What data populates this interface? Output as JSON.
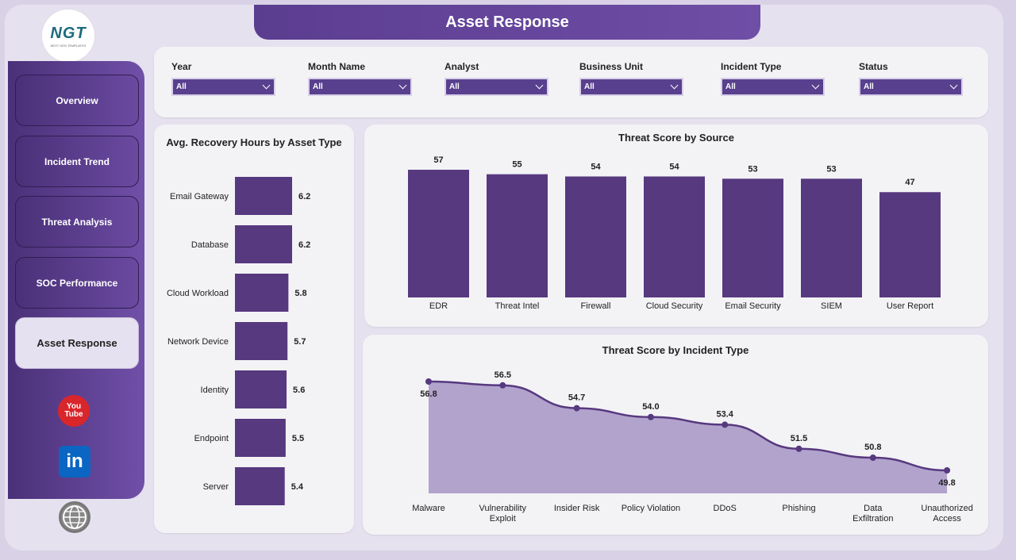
{
  "header": {
    "title": "Asset Response"
  },
  "logo": {
    "text": "NGT",
    "subtext": "NEXT GEN TEMPLATES"
  },
  "nav": {
    "items": [
      {
        "label": "Overview"
      },
      {
        "label": "Incident Trend"
      },
      {
        "label": "Threat Analysis"
      },
      {
        "label": "SOC Performance"
      },
      {
        "label": "Asset Response"
      }
    ],
    "active": "Asset Response"
  },
  "social": {
    "youtube_line1": "You",
    "youtube_line2": "Tube",
    "linkedin": "in",
    "icons": [
      "youtube-icon",
      "linkedin-icon",
      "globe-icon"
    ]
  },
  "filters": [
    {
      "label": "Year",
      "value": "All"
    },
    {
      "label": "Month Name",
      "value": "All"
    },
    {
      "label": "Analyst",
      "value": "All"
    },
    {
      "label": "Business Unit",
      "value": "All"
    },
    {
      "label": "Incident Type",
      "value": "All"
    },
    {
      "label": "Status",
      "value": "All"
    }
  ],
  "colors": {
    "accent": "#58408e",
    "bar": "#57397f",
    "area": "#b2a3cd",
    "line": "#57397f"
  },
  "chart_data": [
    {
      "type": "bar",
      "orientation": "horizontal",
      "title": "Avg. Recovery Hours by Asset Type",
      "categories": [
        "Email Gateway",
        "Database",
        "Cloud Workload",
        "Network Device",
        "Identity",
        "Endpoint",
        "Server"
      ],
      "values": [
        6.2,
        6.2,
        5.8,
        5.7,
        5.6,
        5.5,
        5.4
      ]
    },
    {
      "type": "bar",
      "title": "Threat Score by Source",
      "categories": [
        "EDR",
        "Threat Intel",
        "Firewall",
        "Cloud Security",
        "Email Security",
        "SIEM",
        "User Report"
      ],
      "values": [
        57,
        55,
        54,
        54,
        53,
        53,
        47
      ]
    },
    {
      "type": "area",
      "title": "Threat Score by Incident Type",
      "categories": [
        "Malware",
        "Vulnerability Exploit",
        "Insider Risk",
        "Policy Violation",
        "DDoS",
        "Phishing",
        "Data Exfiltration",
        "Unauthorized Access"
      ],
      "values": [
        56.8,
        56.5,
        54.7,
        54.0,
        53.4,
        51.5,
        50.8,
        49.8
      ],
      "labels": [
        "56.8",
        "56.5",
        "54.7",
        "54.0",
        "53.4",
        "51.5",
        "50.8",
        "49.8"
      ]
    }
  ]
}
